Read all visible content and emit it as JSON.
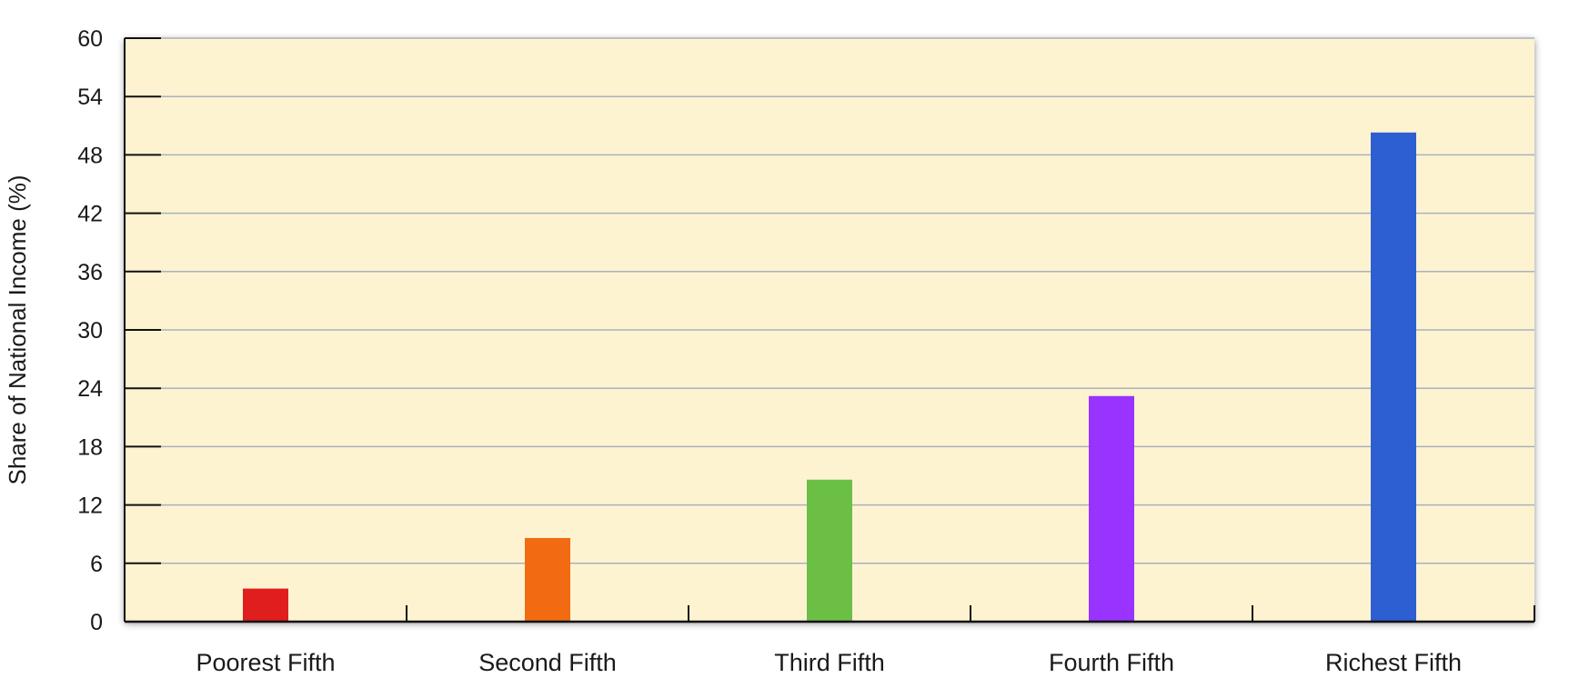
{
  "chart_data": {
    "type": "bar",
    "categories": [
      "Poorest Fifth",
      "Second Fifth",
      "Third Fifth",
      "Fourth Fifth",
      "Richest Fifth"
    ],
    "values": [
      3.4,
      8.6,
      14.6,
      23.2,
      50.3
    ],
    "bar_colors": [
      "#e01e1e",
      "#f26b13",
      "#6cbf45",
      "#9933ff",
      "#2d5fd3"
    ],
    "title": "",
    "xlabel": "",
    "ylabel": "Share of National Income (%)",
    "ylim": [
      0,
      60
    ],
    "yticks": [
      0,
      6,
      12,
      18,
      24,
      30,
      36,
      42,
      48,
      54,
      60
    ],
    "grid": true,
    "plot_background": "#fdf3d1",
    "gridline_color": "#a9b2b9"
  }
}
